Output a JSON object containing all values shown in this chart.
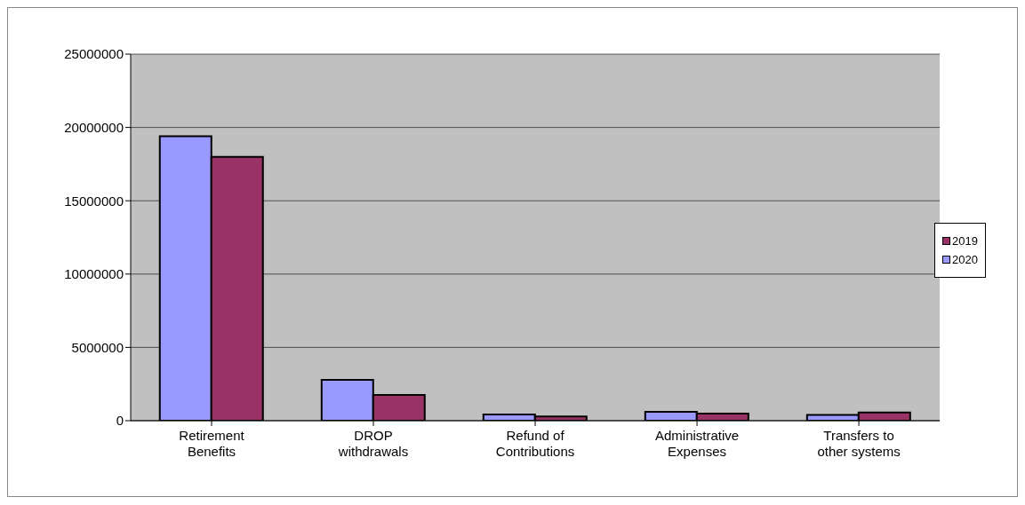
{
  "chart_data": {
    "type": "bar",
    "categories": [
      "Retirement Benefits",
      "DROP withdrawals",
      "Refund of Contributions",
      "Administrative Expenses",
      "Transfers to other systems"
    ],
    "series": [
      {
        "name": "2020",
        "color": "#9999ff",
        "values": [
          19400000,
          2780000,
          420000,
          610000,
          400000
        ]
      },
      {
        "name": "2019",
        "color": "#993366",
        "values": [
          18000000,
          1760000,
          280000,
          480000,
          560000
        ]
      }
    ],
    "ylim": [
      0,
      25000000
    ],
    "yticks": [
      0,
      5000000,
      10000000,
      15000000,
      20000000,
      25000000
    ],
    "grid": "y",
    "legend": "right"
  }
}
